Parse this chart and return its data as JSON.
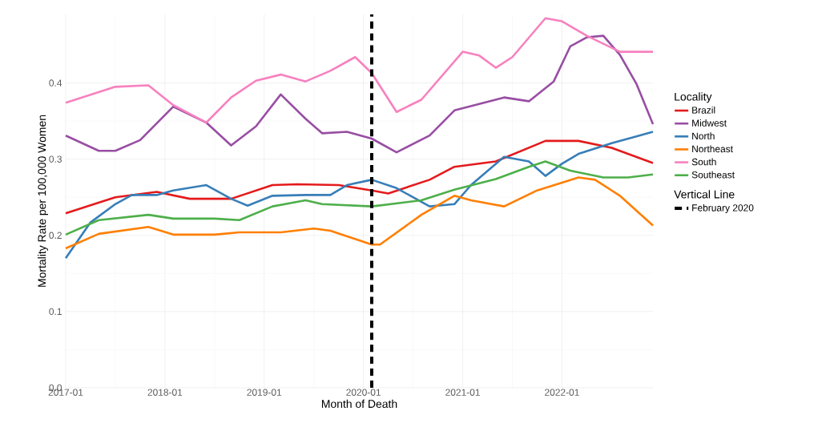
{
  "chart_data": {
    "type": "line",
    "xlabel": "Month of Death",
    "ylabel": "Mortality Rate per 100,000 Women",
    "legend_title": "Locality",
    "annotations": [
      "Vertical Line"
    ],
    "xlim": [
      "2017-01",
      "2022-12"
    ],
    "ylim": [
      0,
      0.49
    ],
    "xticks": [
      "2017-01",
      "2018-01",
      "2019-01",
      "2020-01",
      "2021-01",
      "2022-01"
    ],
    "yticks": [
      {
        "value": 0,
        "label": "0.0"
      },
      0.1,
      0.2,
      0.3,
      0.4
    ],
    "grid": true,
    "legend": "right",
    "line_style": "solid",
    "series": [
      {
        "name": "Brazil",
        "color": "#e41a1c",
        "x": [
          "2017-01",
          "2017-07",
          "2017-12",
          "2018-04",
          "2018-09",
          "2019-02",
          "2019-05",
          "2019-10",
          "2020-02",
          "2020-04",
          "2020-09",
          "2020-12",
          "2021-05",
          "2021-11",
          "2022-03",
          "2022-07",
          "2022-12"
        ],
        "values": [
          0.229,
          0.25,
          0.257,
          0.248,
          0.248,
          0.266,
          0.267,
          0.266,
          0.259,
          0.255,
          0.273,
          0.29,
          0.297,
          0.324,
          0.324,
          0.315,
          0.295
        ]
      },
      {
        "name": "Midwest",
        "color": "#984ea3",
        "x": [
          "2017-01",
          "2017-05",
          "2017-07",
          "2017-10",
          "2018-02",
          "2018-06",
          "2018-09",
          "2018-12",
          "2019-03",
          "2019-06",
          "2019-08",
          "2019-11",
          "2020-02",
          "2020-05",
          "2020-09",
          "2020-12",
          "2021-06",
          "2021-09",
          "2021-12",
          "2022-02",
          "2022-04",
          "2022-06",
          "2022-08",
          "2022-10",
          "2022-12"
        ],
        "values": [
          0.331,
          0.311,
          0.311,
          0.325,
          0.369,
          0.348,
          0.318,
          0.343,
          0.385,
          0.353,
          0.334,
          0.336,
          0.327,
          0.309,
          0.331,
          0.364,
          0.381,
          0.376,
          0.402,
          0.448,
          0.46,
          0.462,
          0.437,
          0.399,
          0.346
        ]
      },
      {
        "name": "North",
        "color": "#377eb8",
        "x": [
          "2017-01",
          "2017-04",
          "2017-07",
          "2017-09",
          "2017-12",
          "2018-02",
          "2018-06",
          "2018-09",
          "2018-11",
          "2019-02",
          "2019-06",
          "2019-09",
          "2019-11",
          "2020-02",
          "2020-05",
          "2020-09",
          "2020-12",
          "2021-02",
          "2021-06",
          "2021-09",
          "2021-11",
          "2022-01",
          "2022-03",
          "2022-07",
          "2022-10",
          "2022-12"
        ],
        "values": [
          0.17,
          0.217,
          0.241,
          0.253,
          0.253,
          0.259,
          0.266,
          0.248,
          0.239,
          0.252,
          0.253,
          0.253,
          0.266,
          0.273,
          0.262,
          0.238,
          0.241,
          0.266,
          0.303,
          0.297,
          0.278,
          0.294,
          0.307,
          0.321,
          0.33,
          0.336
        ]
      },
      {
        "name": "Northeast",
        "color": "#ff7f00",
        "x": [
          "2017-01",
          "2017-05",
          "2017-11",
          "2018-02",
          "2018-07",
          "2018-10",
          "2019-03",
          "2019-07",
          "2019-09",
          "2020-02",
          "2020-03",
          "2020-08",
          "2020-12",
          "2021-02",
          "2021-06",
          "2021-10",
          "2022-03",
          "2022-05",
          "2022-08",
          "2022-12"
        ],
        "values": [
          0.183,
          0.202,
          0.211,
          0.201,
          0.201,
          0.204,
          0.204,
          0.209,
          0.206,
          0.188,
          0.188,
          0.227,
          0.252,
          0.246,
          0.238,
          0.259,
          0.276,
          0.273,
          0.252,
          0.213
        ]
      },
      {
        "name": "South",
        "color": "#f781bf",
        "x": [
          "2017-01",
          "2017-07",
          "2017-11",
          "2018-02",
          "2018-06",
          "2018-09",
          "2018-12",
          "2019-03",
          "2019-06",
          "2019-09",
          "2019-12",
          "2020-02",
          "2020-05",
          "2020-08",
          "2021-01",
          "2021-03",
          "2021-05",
          "2021-07",
          "2021-11",
          "2022-01",
          "2022-04",
          "2022-08",
          "2022-12"
        ],
        "values": [
          0.374,
          0.395,
          0.397,
          0.371,
          0.348,
          0.381,
          0.403,
          0.411,
          0.402,
          0.416,
          0.434,
          0.413,
          0.362,
          0.378,
          0.441,
          0.436,
          0.42,
          0.434,
          0.485,
          0.481,
          0.462,
          0.441,
          0.441
        ]
      },
      {
        "name": "Southeast",
        "color": "#4daf4a",
        "x": [
          "2017-01",
          "2017-05",
          "2017-11",
          "2018-02",
          "2018-07",
          "2018-10",
          "2019-02",
          "2019-06",
          "2019-08",
          "2020-02",
          "2020-08",
          "2020-12",
          "2021-05",
          "2021-09",
          "2021-11",
          "2022-02",
          "2022-06",
          "2022-09",
          "2022-12"
        ],
        "values": [
          0.201,
          0.22,
          0.227,
          0.222,
          0.222,
          0.22,
          0.238,
          0.246,
          0.241,
          0.238,
          0.246,
          0.26,
          0.274,
          0.29,
          0.297,
          0.285,
          0.276,
          0.276,
          0.28
        ]
      },
      {
        "name": "February 2020",
        "color": "#000000",
        "line_style": "dashed",
        "x": [
          "2020-02",
          "2020-02"
        ],
        "values": [
          0,
          0.49
        ]
      }
    ]
  }
}
